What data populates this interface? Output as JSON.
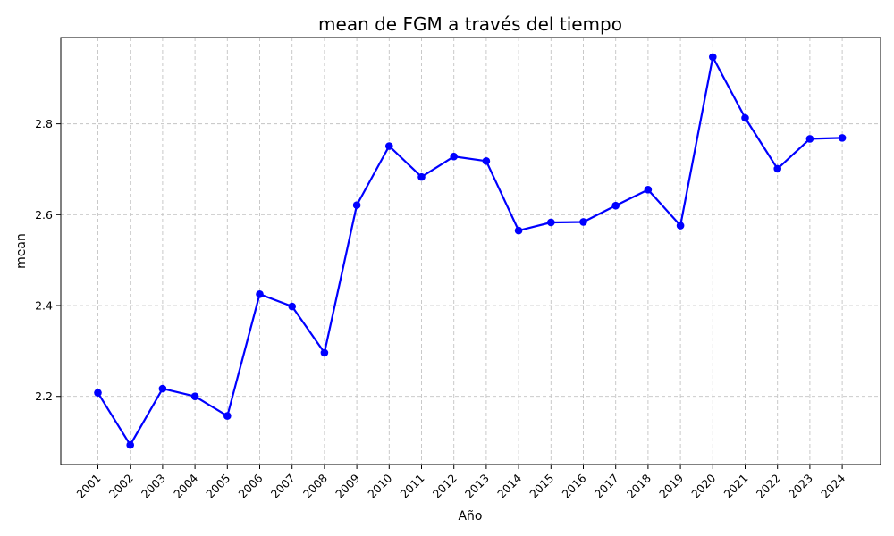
{
  "chart_data": {
    "type": "line",
    "title": "mean de FGM a través del tiempo",
    "xlabel": "Año",
    "ylabel": "mean",
    "categories": [
      "2001",
      "2002",
      "2003",
      "2004",
      "2005",
      "2006",
      "2007",
      "2008",
      "2009",
      "2010",
      "2011",
      "2012",
      "2013",
      "2014",
      "2015",
      "2016",
      "2017",
      "2018",
      "2019",
      "2020",
      "2021",
      "2022",
      "2023",
      "2024"
    ],
    "series": [
      {
        "values": [
          2.208,
          2.093,
          2.217,
          2.2,
          2.157,
          2.425,
          2.398,
          2.296,
          2.621,
          2.751,
          2.683,
          2.728,
          2.718,
          2.565,
          2.583,
          2.584,
          2.62,
          2.655,
          2.576,
          2.947,
          2.813,
          2.701,
          2.767,
          2.769
        ],
        "color": "#0000ff"
      }
    ],
    "ylim": [
      2.05,
      2.99
    ],
    "yticks": [
      2.2,
      2.4,
      2.6,
      2.8
    ],
    "ytick_labels": [
      "2.2",
      "2.4",
      "2.6",
      "2.8"
    ],
    "grid": true,
    "marker": "circle"
  }
}
